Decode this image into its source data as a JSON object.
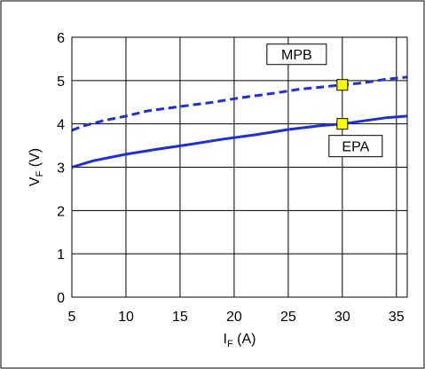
{
  "chart_data": {
    "type": "line",
    "xlabel": {
      "main": "I",
      "sub": "F",
      "unit": " (A)"
    },
    "ylabel": {
      "main": "V",
      "sub": "F",
      "unit": " (V)"
    },
    "xlim": [
      5,
      36
    ],
    "ylim": [
      0,
      6
    ],
    "x_ticks": [
      "5",
      "10",
      "15",
      "20",
      "25",
      "30",
      "35"
    ],
    "y_ticks": [
      "0",
      "1",
      "2",
      "3",
      "4",
      "5",
      "6"
    ],
    "grid": true,
    "series": [
      {
        "name": "MPB",
        "style": "dashed",
        "color": "#1f2fd6",
        "x": [
          5,
          6,
          8,
          10,
          12,
          15,
          18,
          20,
          22,
          24,
          26,
          28,
          30,
          32,
          34,
          36
        ],
        "y": [
          3.85,
          3.95,
          4.08,
          4.18,
          4.3,
          4.4,
          4.5,
          4.58,
          4.65,
          4.72,
          4.8,
          4.85,
          4.9,
          4.95,
          5.03,
          5.08
        ]
      },
      {
        "name": "EPA",
        "style": "solid",
        "color": "#1f2fd6",
        "x": [
          5,
          7,
          10,
          13,
          16,
          19,
          22,
          25,
          28,
          30,
          32,
          34,
          36
        ],
        "y": [
          3.0,
          3.15,
          3.3,
          3.42,
          3.53,
          3.65,
          3.75,
          3.87,
          3.96,
          4.0,
          4.07,
          4.14,
          4.18
        ]
      }
    ],
    "markers": [
      {
        "series": "MPB",
        "x": 30,
        "y": 4.9,
        "color": "#ffff00"
      },
      {
        "series": "EPA",
        "x": 30,
        "y": 4.0,
        "color": "#ffff00"
      }
    ],
    "annotations": [
      {
        "text": "MPB",
        "series": "MPB"
      },
      {
        "text": "EPA",
        "series": "EPA"
      }
    ]
  }
}
